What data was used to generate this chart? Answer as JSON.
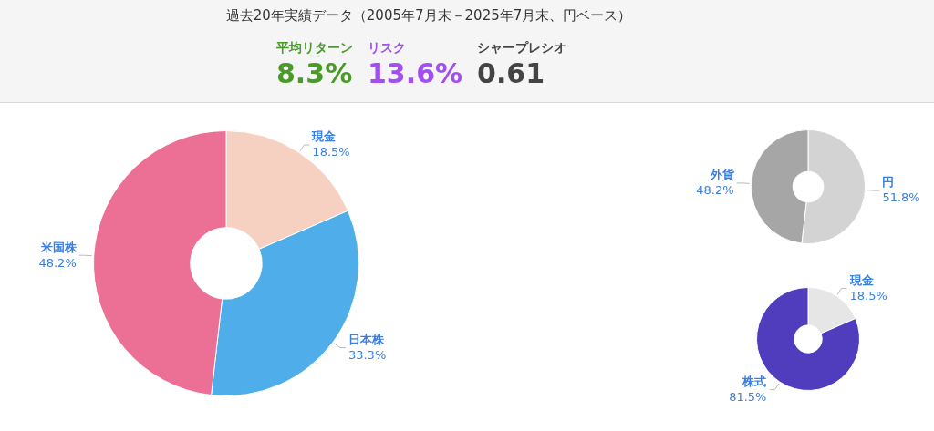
{
  "chart_data": [
    {
      "type": "other",
      "title": "過去20年実績データ（2005年7月末－2025年7月末、円ベース）",
      "annotations": [
        "平均リターン",
        "8.3%",
        "リスク",
        "13.6%",
        "シャープレシオ",
        "0.61"
      ]
    },
    {
      "type": "donut",
      "categories": [
        "現金",
        "日本株",
        "米国株"
      ],
      "values": [
        18.5,
        33.3,
        48.2
      ],
      "colors": [
        "#f6d1c1",
        "#4faee9",
        "#ec7096"
      ],
      "data_labels": true,
      "value_labels": [
        "18.5%",
        "33.3%",
        "48.2%"
      ],
      "legend": false
    },
    {
      "type": "donut",
      "categories": [
        "円",
        "外貨"
      ],
      "values": [
        51.8,
        48.2
      ],
      "colors": [
        "#d3d3d3",
        "#a6a6a6"
      ],
      "data_labels": true,
      "value_labels": [
        "51.8%",
        "48.2%"
      ],
      "legend": false
    },
    {
      "type": "donut",
      "categories": [
        "現金",
        "株式"
      ],
      "values": [
        18.5,
        81.5
      ],
      "colors": [
        "#e6e6e6",
        "#4f3dbd"
      ],
      "data_labels": true,
      "value_labels": [
        "18.5%",
        "81.5%"
      ],
      "legend": false
    }
  ]
}
